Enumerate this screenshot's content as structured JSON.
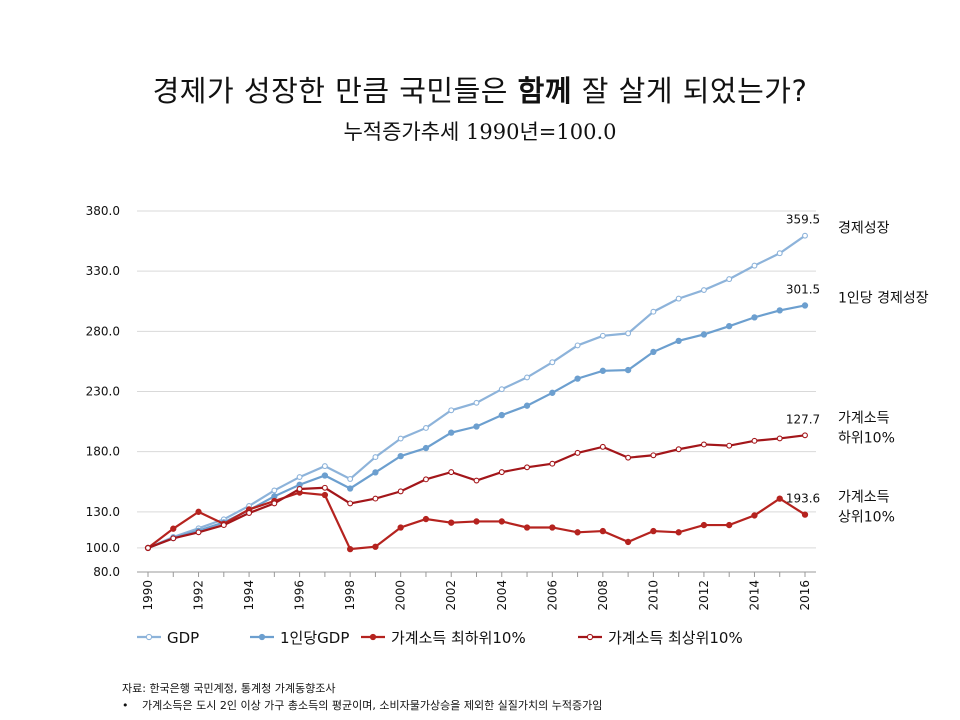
{
  "title": {
    "pre": "경제가 성장한 만큼 국민들은 ",
    "bold": "함께",
    "post": " 잘 살게 되었는가?"
  },
  "subtitle": "누적증가추세 1990년=100.0",
  "source": "자료: 한국은행 국민계정, 통계청 가계동향조사",
  "note": "가계소득은 도시 2인 이상 가구 총소득의 평균이며, 소비자물가상승을 제외한 실질가치의 누적증가임",
  "note_bullet": "•",
  "chart_data": {
    "type": "line",
    "x": [
      1990,
      1991,
      1992,
      1993,
      1994,
      1995,
      1996,
      1997,
      1998,
      1999,
      2000,
      2001,
      2002,
      2003,
      2004,
      2005,
      2006,
      2007,
      2008,
      2009,
      2010,
      2011,
      2012,
      2013,
      2014,
      2015,
      2016
    ],
    "x_tick_labels": [
      "1990",
      "1992",
      "1994",
      "1996",
      "1998",
      "2000",
      "2002",
      "2004",
      "2006",
      "2008",
      "2010",
      "2012",
      "2014",
      "2016"
    ],
    "y_tick_labels": [
      "380.0",
      "330.0",
      "280.0",
      "230.0",
      "180.0",
      "130.0",
      "100.0",
      "80.0"
    ],
    "y_ticks": [
      380,
      330,
      280,
      230,
      180,
      130,
      100,
      80
    ],
    "ylim": [
      80,
      390
    ],
    "series": [
      {
        "name": "GDP",
        "color": "#8db3da",
        "marker": "hollow",
        "values": [
          100,
          109.1,
          116.3,
          123.8,
          134.9,
          147.8,
          158.9,
          168,
          157.3,
          175.5,
          190.9,
          199.7,
          214.4,
          220.6,
          231.9,
          241.7,
          254.3,
          268.3,
          276.3,
          278.3,
          296.3,
          307.2,
          314.3,
          323.4,
          334.6,
          344.9,
          359.5
        ]
      },
      {
        "name": "1인당GDP",
        "color": "#6c9fcf",
        "marker": "filled",
        "values": [
          100,
          108.2,
          114.3,
          121.2,
          131.4,
          142.9,
          152.5,
          160.2,
          149.4,
          162.8,
          176.3,
          183,
          195.8,
          200.9,
          210.4,
          218.2,
          228.9,
          240.7,
          247.2,
          247.8,
          262.9,
          272.1,
          277.4,
          284.3,
          291.6,
          297.4,
          301.5
        ]
      },
      {
        "name": "가계소득 최하위10%",
        "color": "#b5231f",
        "marker": "filled",
        "values": [
          100,
          116,
          130,
          120,
          132,
          139,
          146,
          144,
          99,
          101,
          117,
          124,
          121,
          122,
          122,
          117,
          117,
          113,
          114,
          105,
          114,
          113,
          119,
          119,
          127,
          141,
          127.7
        ]
      },
      {
        "name": "가계소득 최상위10%",
        "color": "#a3161a",
        "marker": "hollow",
        "values": [
          100,
          108,
          113,
          119,
          129,
          137,
          149,
          150,
          137,
          141,
          147,
          157,
          163,
          156,
          163,
          167,
          170,
          179,
          184,
          175,
          177,
          182,
          186,
          185,
          189,
          191,
          193.6
        ]
      }
    ],
    "end_labels": [
      "359.5",
      "301.5",
      "193.6",
      "127.7"
    ],
    "right_labels": [
      [
        "경제성장"
      ],
      [
        "1인당 경제성장"
      ],
      [
        "가계소득",
        "상위10%"
      ],
      [
        "가계소득",
        "하위10%"
      ]
    ]
  }
}
